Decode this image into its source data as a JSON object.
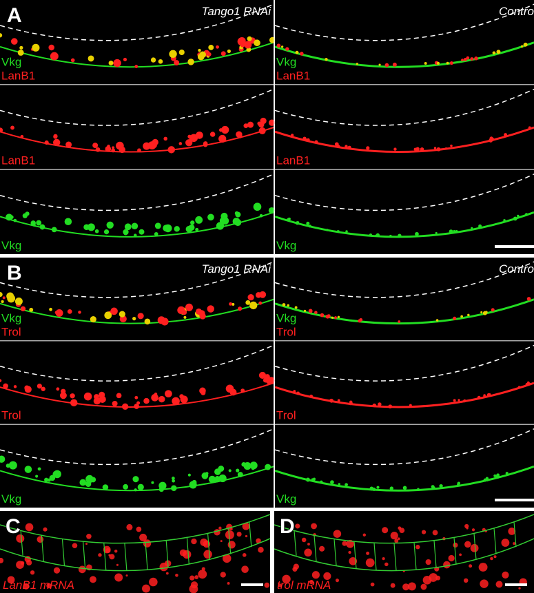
{
  "panels": [
    {
      "label": "A",
      "columns": [
        {
          "title": "Tango1 RNAi",
          "rows": [
            [
              {
                "text": "Vkg",
                "color": "#22dd22"
              },
              {
                "text": "LanB1",
                "color": "#ff2020"
              }
            ],
            [
              {
                "text": "LanB1",
                "color": "#ff2020"
              }
            ],
            [
              {
                "text": "Vkg",
                "color": "#22dd22"
              }
            ]
          ]
        },
        {
          "title": "Contro",
          "rows": [
            [
              {
                "text": "Vkg",
                "color": "#22dd22"
              },
              {
                "text": "LanB1",
                "color": "#ff2020"
              }
            ],
            [
              {
                "text": "LanB1",
                "color": "#ff2020"
              }
            ],
            [
              {
                "text": "Vkg",
                "color": "#22dd22"
              }
            ]
          ]
        }
      ]
    },
    {
      "label": "B",
      "columns": [
        {
          "title": "Tango1 RNAi",
          "rows": [
            [
              {
                "text": "Vkg",
                "color": "#22dd22"
              },
              {
                "text": "Trol",
                "color": "#ff2020"
              }
            ],
            [
              {
                "text": "Trol",
                "color": "#ff2020"
              }
            ],
            [
              {
                "text": "Vkg",
                "color": "#22dd22"
              }
            ]
          ]
        },
        {
          "title": "Contro",
          "rows": [
            [
              {
                "text": "Vkg",
                "color": "#22dd22"
              },
              {
                "text": "Trol",
                "color": "#ff2020"
              }
            ],
            [
              {
                "text": "Trol",
                "color": "#ff2020"
              }
            ],
            [
              {
                "text": "Vkg",
                "color": "#22dd22"
              }
            ]
          ]
        }
      ]
    },
    {
      "label": "C",
      "caption": "LanB1 mRNA"
    },
    {
      "label": "D",
      "caption": "trol mRNA"
    }
  ]
}
